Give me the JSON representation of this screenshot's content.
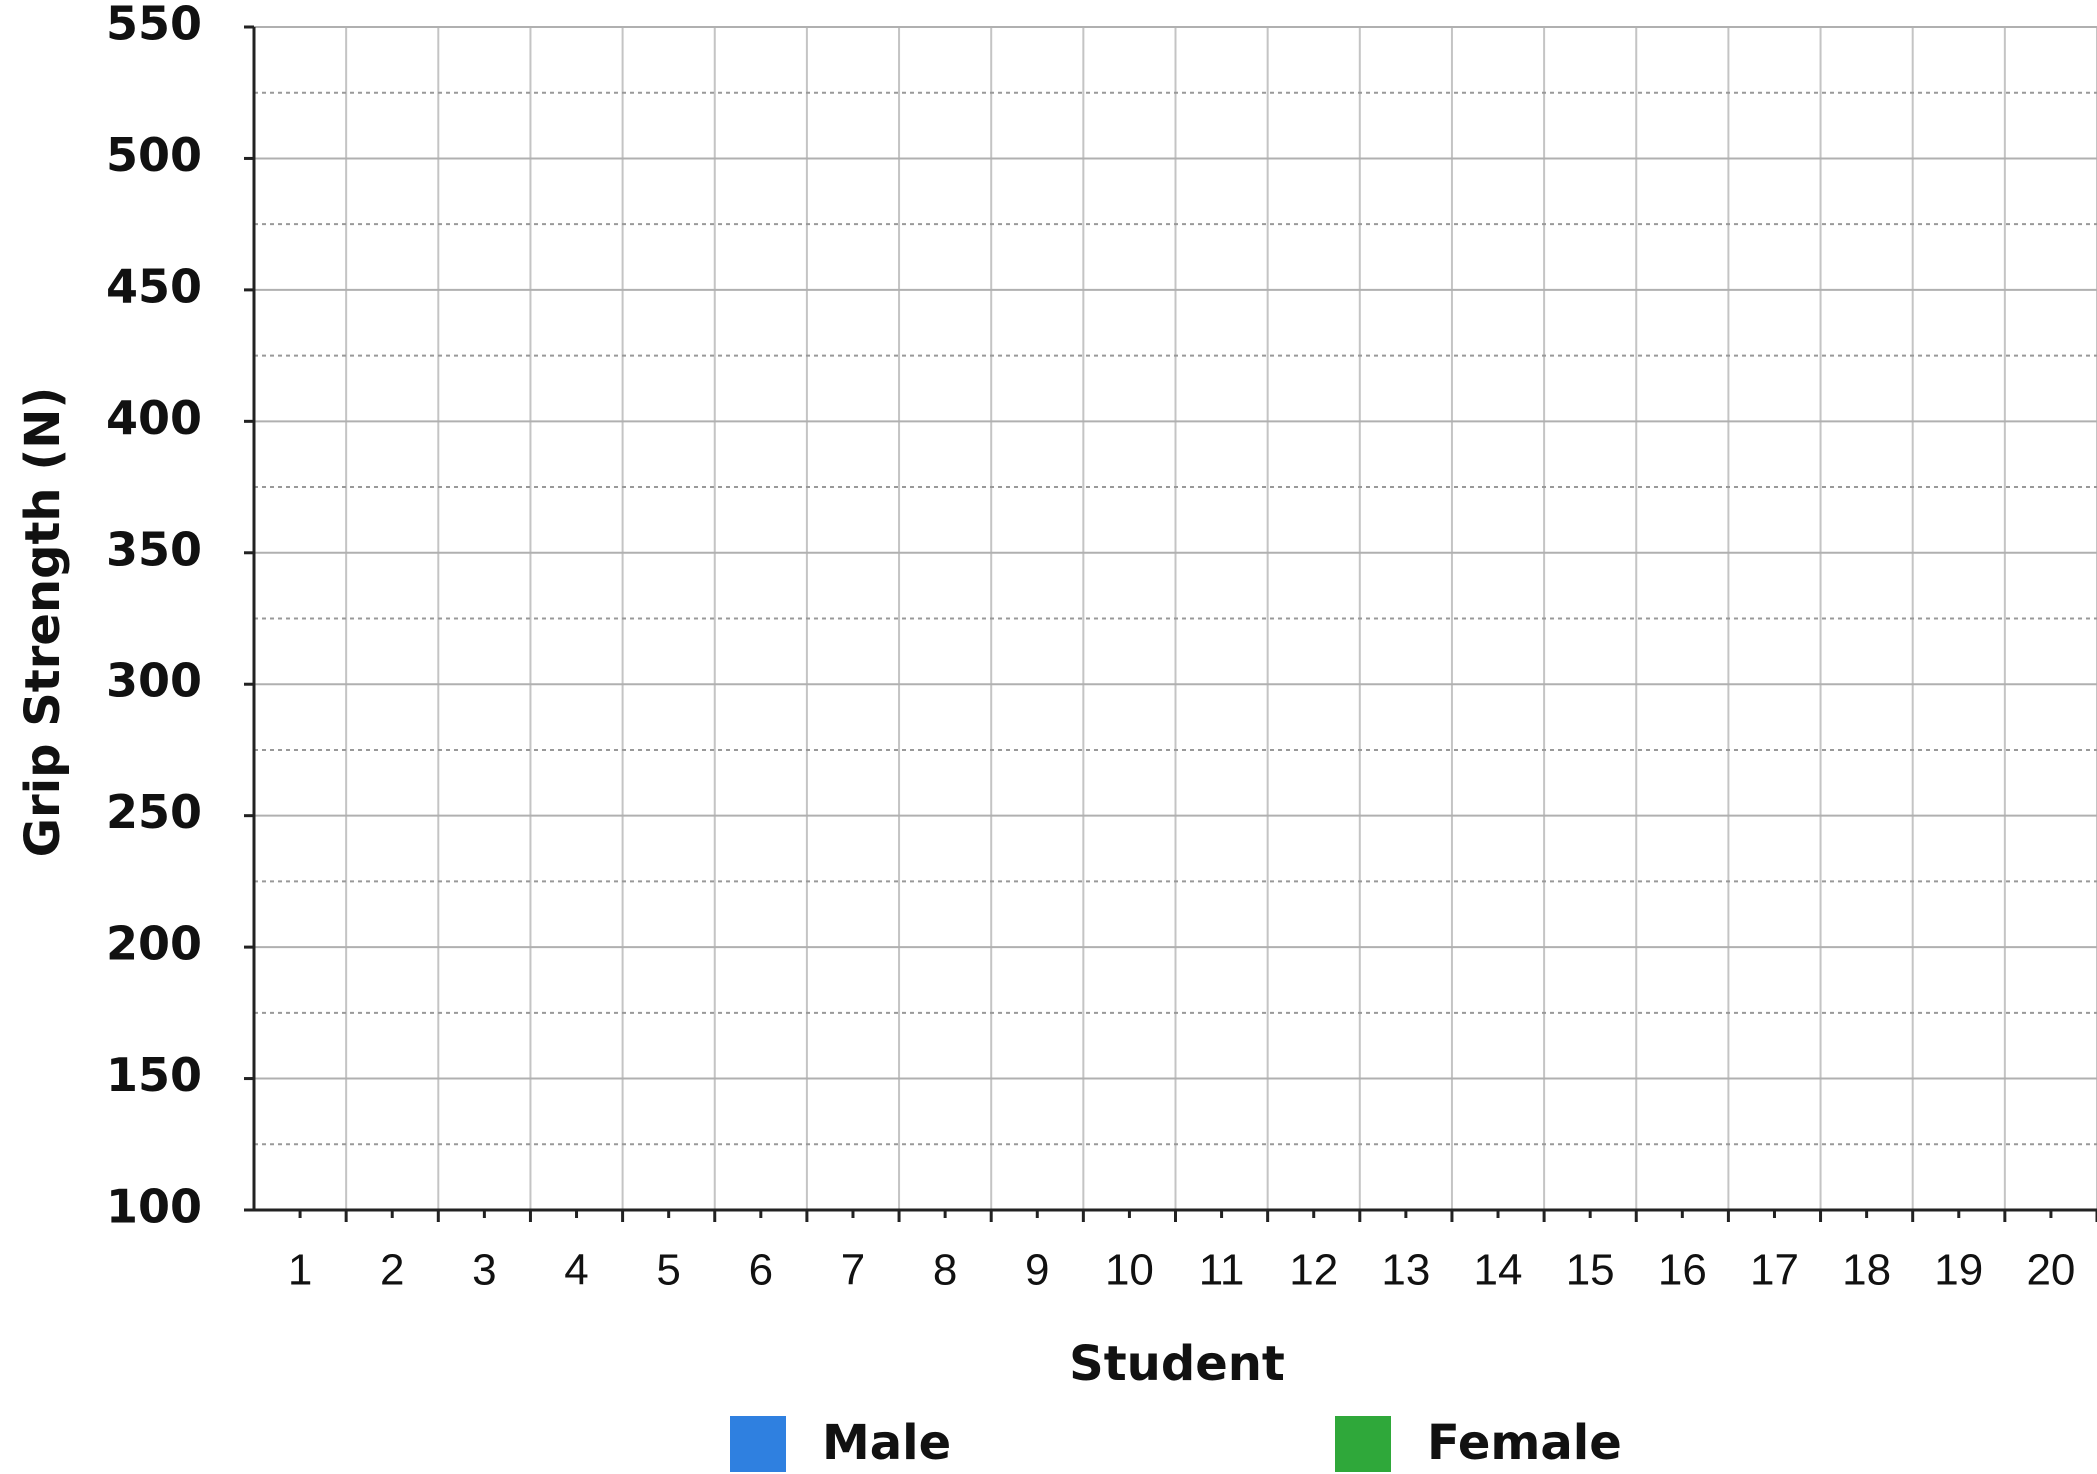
{
  "chart_data": {
    "type": "bar",
    "xlabel": "Student",
    "ylabel": "Grip Strength (N)",
    "categories": [
      "1",
      "2",
      "3",
      "4",
      "5",
      "6",
      "7",
      "8",
      "9",
      "10",
      "11",
      "12",
      "13",
      "14",
      "15",
      "16",
      "17",
      "18",
      "19",
      "20"
    ],
    "series": [
      {
        "name": "Male",
        "color": "#2f80e0",
        "values": [
          null,
          null,
          null,
          null,
          null,
          null,
          null,
          null,
          null,
          null,
          null,
          null,
          null,
          null,
          null,
          null,
          null,
          null,
          null,
          null
        ]
      },
      {
        "name": "Female",
        "color": "#2fa83a",
        "values": [
          null,
          null,
          null,
          null,
          null,
          null,
          null,
          null,
          null,
          null,
          null,
          null,
          null,
          null,
          null,
          null,
          null,
          null,
          null,
          null
        ]
      }
    ],
    "ylim": [
      100,
      550
    ],
    "yticks": [
      100,
      150,
      200,
      250,
      300,
      350,
      400,
      450,
      500,
      550
    ],
    "yticks_minor": [
      125,
      175,
      225,
      275,
      325,
      375,
      425,
      475,
      525
    ],
    "grid": true,
    "legend": "bottom"
  }
}
